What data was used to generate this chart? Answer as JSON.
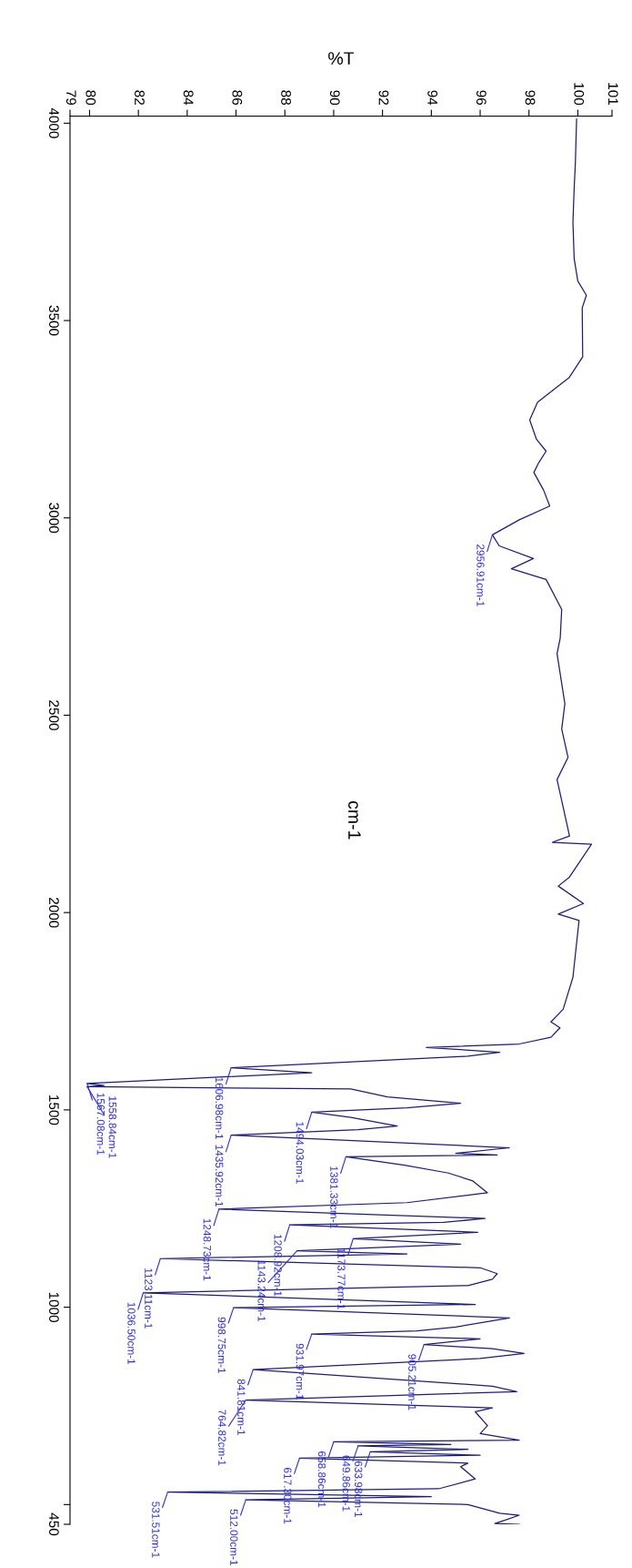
{
  "chart_data": {
    "type": "line",
    "orientation": "horizontal",
    "xlabel": "%T",
    "ylabel": "cm-1",
    "xlim": [
      79.2,
      101.4
    ],
    "ylim": [
      450,
      4018
    ],
    "xticks": [
      {
        "value": 79.2,
        "label": "79"
      },
      80,
      82,
      84,
      86,
      88,
      90,
      92,
      94,
      96,
      98,
      100,
      {
        "value": 101.4,
        "label": "101"
      }
    ],
    "yticks": [
      4000,
      3500,
      3000,
      2500,
      2000,
      1500,
      1000,
      {
        "value": 500,
        "label": null
      },
      {
        "value": 450,
        "label": "450"
      }
    ],
    "grid": false,
    "line_style": "solid",
    "x": [
      4010,
      3900,
      3834,
      3750,
      3657,
      3600,
      3564,
      3532,
      3408,
      3355,
      3293,
      3248,
      3200,
      3169,
      3140,
      3115,
      3070,
      3030,
      2995,
      2956.91,
      2929,
      2897,
      2871,
      2844,
      2768,
      2696,
      2656,
      2529,
      2465,
      2393,
      2337,
      2194,
      2178,
      2173,
      2090,
      2067,
      2023,
      1996,
      1980,
      1836,
      1755,
      1723,
      1708,
      1684,
      1667,
      1658,
      1652,
      1646,
      1636,
      1606.98,
      1594,
      1567.08,
      1562,
      1558.84,
      1553,
      1533,
      1517,
      1505,
      1494.03,
      1481,
      1459,
      1450,
      1435.92,
      1404,
      1390,
      1386,
      1381.33,
      1360,
      1340,
      1320,
      1290,
      1265,
      1248.73,
      1225,
      1215,
      1208.92,
      1190,
      1173.77,
      1160,
      1143.24,
      1135,
      1123.11,
      1100,
      1085,
      1071,
      1055,
      1036.5,
      1007,
      998.75,
      973,
      950,
      940,
      931.97,
      920,
      905.21,
      895,
      883,
      870,
      841.81,
      800,
      786,
      764.82,
      745,
      735,
      700,
      680,
      663,
      658.86,
      652,
      648.86,
      640,
      633.98,
      625,
      617.3,
      605,
      596,
      565,
      540,
      531.51,
      520,
      512.0,
      500,
      478,
      473,
      460,
      452,
      450
    ],
    "series": [
      {
        "color": "#1c1c80",
        "values": [
          99.95,
          99.9,
          99.85,
          99.8,
          99.85,
          100.0,
          100.35,
          100.18,
          100.2,
          99.64,
          98.35,
          98.03,
          98.3,
          98.7,
          98.4,
          98.2,
          98.6,
          98.85,
          97.6,
          96.5,
          96.78,
          98.18,
          97.28,
          98.7,
          99.34,
          99.28,
          99.15,
          99.47,
          99.34,
          99.6,
          99.15,
          99.66,
          98.96,
          100.56,
          99.66,
          99.2,
          100.23,
          99.2,
          100.05,
          99.8,
          99.4,
          98.9,
          99.27,
          98.9,
          97.6,
          93.8,
          95.4,
          96.8,
          95.5,
          85.8,
          89.1,
          79.9,
          80.6,
          79.9,
          90.7,
          92.2,
          95.2,
          93.0,
          89.1,
          90.7,
          92.6,
          91.0,
          85.8,
          97.2,
          95.0,
          96.7,
          90.5,
          92.9,
          94.7,
          95.7,
          96.3,
          93.0,
          85.3,
          96.2,
          94.5,
          88.2,
          95.9,
          90.8,
          95.2,
          88.5,
          93.0,
          82.9,
          96.0,
          96.7,
          96.5,
          95.5,
          82.2,
          95.8,
          85.9,
          97.2,
          95.0,
          93.4,
          89.1,
          96.0,
          93.7,
          96.5,
          97.8,
          96.0,
          86.7,
          96.5,
          97.5,
          86.4,
          96.5,
          95.8,
          96.3,
          96.0,
          97.6,
          90.0,
          94.8,
          91.0,
          95.5,
          91.5,
          96.0,
          88.6,
          95.5,
          95.2,
          95.8,
          94.3,
          83.2,
          94.0,
          86.4,
          95.5,
          96.8,
          97.6,
          97.0,
          96.6,
          97.6
        ]
      }
    ],
    "annotations": [
      {
        "text": "2956.91cm-1",
        "y": 2956.91,
        "x": 96.5
      },
      {
        "text": "1606.98cm-1",
        "y": 1606.98,
        "x": 85.8
      },
      {
        "text": "1567.08cm-1",
        "y": 1567.08,
        "x": 79.9
      },
      {
        "text": "1558.84cm-1",
        "y": 1558.84,
        "x": 79.9
      },
      {
        "text": "1494.03cm-1",
        "y": 1494.03,
        "x": 89.1
      },
      {
        "text": "1435.92cm-1",
        "y": 1435.92,
        "x": 85.8
      },
      {
        "text": "1381.33cm-1",
        "y": 1381.33,
        "x": 90.5
      },
      {
        "text": "1248.73cm-1",
        "y": 1248.73,
        "x": 85.3
      },
      {
        "text": "1208.92cm-1",
        "y": 1208.92,
        "x": 88.2
      },
      {
        "text": "1173.77cm-1",
        "y": 1173.77,
        "x": 90.8
      },
      {
        "text": "1143.24cm-1",
        "y": 1143.24,
        "x": 88.5
      },
      {
        "text": "1123.11cm-1",
        "y": 1123.11,
        "x": 82.9
      },
      {
        "text": "1036.50cm-1",
        "y": 1036.5,
        "x": 82.2
      },
      {
        "text": "998.75cm-1",
        "y": 998.75,
        "x": 85.9
      },
      {
        "text": "931.97cm-1",
        "y": 931.97,
        "x": 89.1
      },
      {
        "text": "905.21cm-1",
        "y": 905.21,
        "x": 93.7
      },
      {
        "text": "841.81cm-1",
        "y": 841.81,
        "x": 86.7
      },
      {
        "text": "764.82cm-1",
        "y": 764.82,
        "x": 86.4
      },
      {
        "text": "658.86cm-1",
        "y": 658.86,
        "x": 90.0
      },
      {
        "text": "649.86cm-1",
        "y": 648.86,
        "x": 91.0
      },
      {
        "text": "633.98cm-1",
        "y": 633.98,
        "x": 91.5
      },
      {
        "text": "617.30cm-1",
        "y": 617.3,
        "x": 88.6
      },
      {
        "text": "531.51cm-1",
        "y": 531.51,
        "x": 83.2
      },
      {
        "text": "512.00cm-1",
        "y": 512.0,
        "x": 86.4
      }
    ]
  }
}
